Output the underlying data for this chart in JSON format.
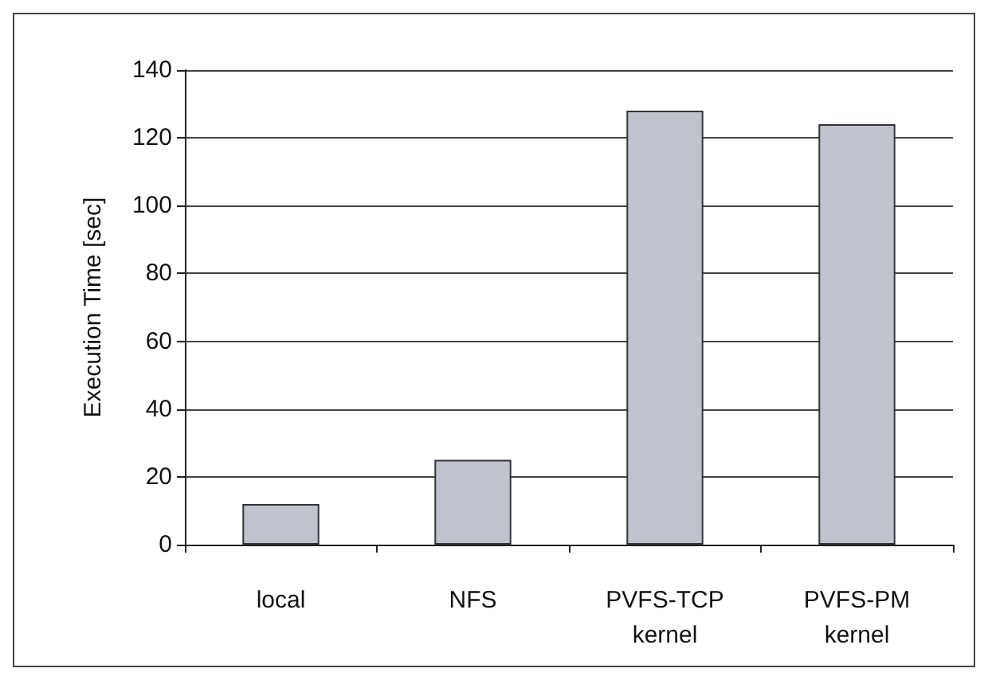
{
  "chart_data": {
    "type": "bar",
    "ylabel": "Execution Time [sec]",
    "categories": [
      "local",
      "NFS",
      "PVFS-TCP\nkernel",
      "PVFS-PM\nkernel"
    ],
    "values": [
      12,
      25,
      128,
      124
    ],
    "color": "#c0c3cb",
    "ylim": [
      0,
      140
    ],
    "yticks": [
      0,
      20,
      40,
      60,
      80,
      100,
      120,
      140
    ],
    "grid": "y"
  }
}
